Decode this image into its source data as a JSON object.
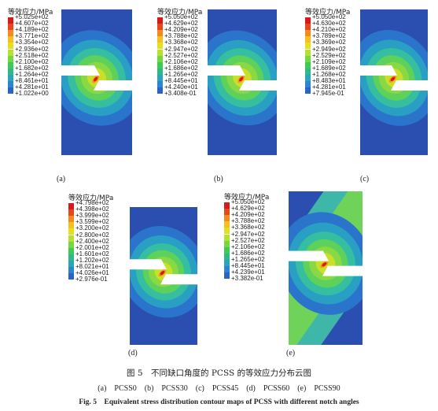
{
  "colors": {
    "scale": [
      "#d7191c",
      "#e8471b",
      "#f48a1d",
      "#f6bf1e",
      "#e6df1f",
      "#b7e12c",
      "#74d845",
      "#3fca52",
      "#2fb98a",
      "#2aa5b9",
      "#2a86d3",
      "#2a64c4",
      "#2a44a6"
    ]
  },
  "panels": [
    {
      "label": "(a)",
      "title": "等效应力/MPa",
      "ticks": [
        "+5.025e+02",
        "+4.607e+02",
        "+4.189e+02",
        "+3.771e+02",
        "+3.354e+02",
        "+2.936e+02",
        "+2.518e+02",
        "+2.100e+02",
        "+1.682e+02",
        "+1.264e+02",
        "+8.461e+01",
        "+4.281e+01",
        "+1.022e+00"
      ],
      "angle": 0
    },
    {
      "label": "(b)",
      "title": "等效应力/MPa",
      "ticks": [
        "+5.050e+02",
        "+4.629e+02",
        "+4.209e+02",
        "+3.788e+02",
        "+3.368e+02",
        "+2.947e+02",
        "+2.527e+02",
        "+2.106e+02",
        "+1.686e+02",
        "+1.265e+02",
        "+8.445e+01",
        "+4.240e+01",
        "+3.408e-01"
      ],
      "angle": 30
    },
    {
      "label": "(c)",
      "title": "等效应力/MPa",
      "ticks": [
        "+5.050e+02",
        "+4.630e+02",
        "+4.210e+02",
        "+3.789e+02",
        "+3.369e+02",
        "+2.949e+02",
        "+2.529e+02",
        "+2.109e+02",
        "+1.689e+02",
        "+1.268e+02",
        "+8.483e+01",
        "+4.281e+01",
        "+7.945e-01"
      ],
      "angle": 45
    },
    {
      "label": "(d)",
      "title": "等效应力/MPa",
      "ticks": [
        "+4.798e+02",
        "+4.398e+02",
        "+3.999e+02",
        "+3.599e+02",
        "+3.200e+02",
        "+2.800e+02",
        "+2.400e+02",
        "+2.001e+02",
        "+1.601e+02",
        "+1.202e+02",
        "+8.021e+01",
        "+4.026e+01",
        "+2.976e-01"
      ],
      "angle": 60
    },
    {
      "label": "(e)",
      "title": "等效应力/MPa",
      "ticks": [
        "+5.050e+02",
        "+4.629e+02",
        "+4.209e+02",
        "+3.788e+02",
        "+3.368e+02",
        "+2.947e+02",
        "+2.527e+02",
        "+2.106e+02",
        "+1.686e+02",
        "+1.265e+02",
        "+8.445e+01",
        "+4.239e+01",
        "+3.382e-01"
      ],
      "angle": 90
    }
  ],
  "caption": {
    "cn": "图 5　不同缺口角度的 PCSS 的等效应力分布云图",
    "sub": "(a)　PCSS0　(b)　PCSS30　(c)　PCSS45　(d)　PCSS60　(e)　PCSS90",
    "en": "Fig. 5　Equivalent stress distribution contour maps of PCSS with different notch angles"
  }
}
